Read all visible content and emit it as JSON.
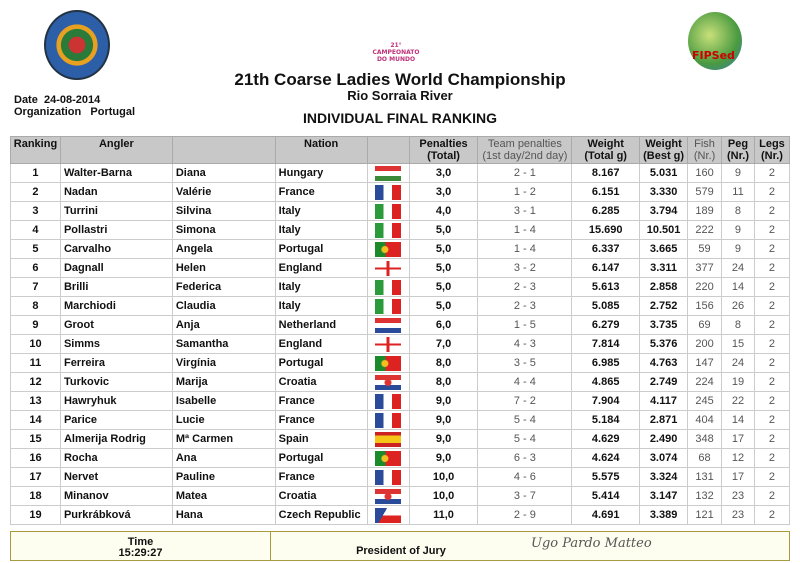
{
  "header": {
    "title": "21th Coarse Ladies World Championship",
    "venue": "Rio Sorraia River",
    "subtitle": "INDIVIDUAL FINAL RANKING",
    "date_label": "Date",
    "date": "24-08-2014",
    "org_label": "Organization",
    "org": "Portugal",
    "center_logo_text": "21° CAMPEONATO DO MUNDO",
    "right_logo_text": "FIPSed"
  },
  "columns": {
    "ranking": "Ranking",
    "angler": "Angler",
    "nation": "Nation",
    "penalties": "Penalties (Total)",
    "team": "Team penalties (1st day/2nd day)",
    "weight_total": "Weight (Total g)",
    "weight_best": "Weight (Best g)",
    "fish": "Fish (Nr.)",
    "peg": "Peg (Nr.)",
    "legs": "Legs (Nr.)"
  },
  "rows": [
    [
      "1",
      "Walter-Barna",
      "Diana",
      "Hungary",
      "hungary",
      "3,0",
      "2 - 1",
      "8.167",
      "5.031",
      "160",
      "9",
      "2"
    ],
    [
      "2",
      "Nadan",
      "Valérie",
      "France",
      "france",
      "3,0",
      "1 - 2",
      "6.151",
      "3.330",
      "579",
      "11",
      "2"
    ],
    [
      "3",
      "Turrini",
      "Silvina",
      "Italy",
      "italy",
      "4,0",
      "3 - 1",
      "6.285",
      "3.794",
      "189",
      "8",
      "2"
    ],
    [
      "4",
      "Pollastri",
      "Simona",
      "Italy",
      "italy",
      "5,0",
      "1 - 4",
      "15.690",
      "10.501",
      "222",
      "9",
      "2"
    ],
    [
      "5",
      "Carvalho",
      "Angela",
      "Portugal",
      "portugal",
      "5,0",
      "1 - 4",
      "6.337",
      "3.665",
      "59",
      "9",
      "2"
    ],
    [
      "6",
      "Dagnall",
      "Helen",
      "England",
      "england",
      "5,0",
      "3 - 2",
      "6.147",
      "3.311",
      "377",
      "24",
      "2"
    ],
    [
      "7",
      "Brilli",
      "Federica",
      "Italy",
      "italy",
      "5,0",
      "2 - 3",
      "5.613",
      "2.858",
      "220",
      "14",
      "2"
    ],
    [
      "8",
      "Marchiodi",
      "Claudia",
      "Italy",
      "italy",
      "5,0",
      "2 - 3",
      "5.085",
      "2.752",
      "156",
      "26",
      "2"
    ],
    [
      "9",
      "Groot",
      "Anja",
      "Netherland",
      "netherlands",
      "6,0",
      "1 - 5",
      "6.279",
      "3.735",
      "69",
      "8",
      "2"
    ],
    [
      "10",
      "Simms",
      "Samantha",
      "England",
      "england",
      "7,0",
      "4 - 3",
      "7.814",
      "5.376",
      "200",
      "15",
      "2"
    ],
    [
      "11",
      "Ferreira",
      "Virgínia",
      "Portugal",
      "portugal",
      "8,0",
      "3 - 5",
      "6.985",
      "4.763",
      "147",
      "24",
      "2"
    ],
    [
      "12",
      "Turkovic",
      "Marija",
      "Croatia",
      "croatia",
      "8,0",
      "4 - 4",
      "4.865",
      "2.749",
      "224",
      "19",
      "2"
    ],
    [
      "13",
      "Hawryhuk",
      "Isabelle",
      "France",
      "france",
      "9,0",
      "7 - 2",
      "7.904",
      "4.117",
      "245",
      "22",
      "2"
    ],
    [
      "14",
      "Parice",
      "Lucie",
      "France",
      "france",
      "9,0",
      "5 - 4",
      "5.184",
      "2.871",
      "404",
      "14",
      "2"
    ],
    [
      "15",
      "Almerija Rodrig",
      "Mª Carmen",
      "Spain",
      "spain",
      "9,0",
      "5 - 4",
      "4.629",
      "2.490",
      "348",
      "17",
      "2"
    ],
    [
      "16",
      "Rocha",
      "Ana",
      "Portugal",
      "portugal",
      "9,0",
      "6 - 3",
      "4.624",
      "3.074",
      "68",
      "12",
      "2"
    ],
    [
      "17",
      "Nervet",
      "Pauline",
      "France",
      "france",
      "10,0",
      "4 - 6",
      "5.575",
      "3.324",
      "131",
      "17",
      "2"
    ],
    [
      "18",
      "Minanov",
      "Matea",
      "Croatia",
      "croatia",
      "10,0",
      "3 - 7",
      "5.414",
      "3.147",
      "132",
      "23",
      "2"
    ],
    [
      "19",
      "Purkrábková",
      "Hana",
      "Czech Republic",
      "czech",
      "11,0",
      "2 - 9",
      "4.691",
      "3.389",
      "121",
      "23",
      "2"
    ]
  ],
  "footer": {
    "time_label": "Time",
    "time": "15:29:27",
    "president_label": "President of Jury",
    "signature": "Ugo Pardo Matteo"
  }
}
